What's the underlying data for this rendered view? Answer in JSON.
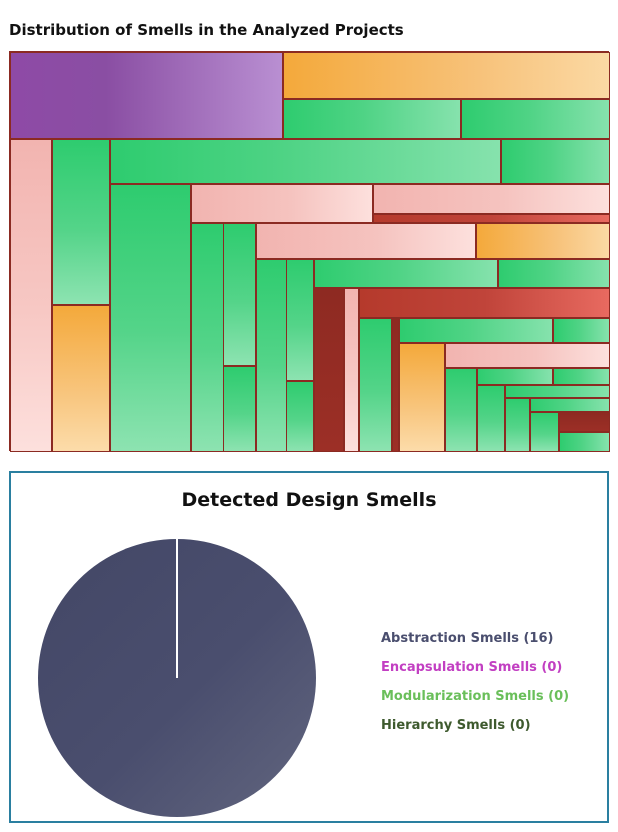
{
  "treemap": {
    "title": "Distribution of Smells in the Analyzed Projects"
  },
  "pie": {
    "title": "Detected Design Smells"
  },
  "chart_data": [
    {
      "type": "treemap",
      "title": "Distribution of Smells in the Analyzed Projects",
      "legend": "none",
      "cells": [
        {
          "color": "purple",
          "value": 0.136
        },
        {
          "color": "orange",
          "value": 0.066
        },
        {
          "color": "green",
          "value": 0.038
        },
        {
          "color": "green",
          "value": 0.031
        },
        {
          "color": "pink",
          "value": 0.054
        },
        {
          "color": "green",
          "value": 0.045
        },
        {
          "color": "orange",
          "value": 0.04
        },
        {
          "color": "green",
          "value": 0.065
        },
        {
          "color": "green",
          "value": 0.018
        },
        {
          "color": "green",
          "value": 0.044
        },
        {
          "color": "pink",
          "value": 0.031
        },
        {
          "color": "pink",
          "value": 0.029
        },
        {
          "color": "red",
          "value": 0.006
        },
        {
          "color": "green",
          "value": 0.018
        },
        {
          "color": "green",
          "value": 0.012
        },
        {
          "color": "green",
          "value": 0.007
        },
        {
          "color": "pink",
          "value": 0.024
        },
        {
          "color": "orange",
          "value": 0.011
        },
        {
          "color": "green",
          "value": 0.016
        },
        {
          "color": "green",
          "value": 0.009
        },
        {
          "color": "green",
          "value": 0.016
        },
        {
          "color": "green",
          "value": 0.01
        },
        {
          "color": "green",
          "value": 0.012
        },
        {
          "color": "darkred",
          "value": 0.011
        },
        {
          "color": "pink",
          "value": 0.005
        },
        {
          "color": "red",
          "value": 0.018
        },
        {
          "color": "green",
          "value": 0.012
        },
        {
          "color": "darkred",
          "value": 0.002
        },
        {
          "color": "green",
          "value": 0.007
        },
        {
          "color": "green",
          "value": 0.004
        },
        {
          "color": "orange",
          "value": 0.008
        },
        {
          "color": "pink",
          "value": 0.012
        },
        {
          "color": "green",
          "value": 0.006
        },
        {
          "color": "green",
          "value": 0.005
        },
        {
          "color": "green",
          "value": 0.002
        },
        {
          "color": "green",
          "value": 0.005
        },
        {
          "color": "green",
          "value": 0.003
        },
        {
          "color": "green",
          "value": 0.004
        },
        {
          "color": "green",
          "value": 0.003
        },
        {
          "color": "green",
          "value": 0.002
        },
        {
          "color": "darkred",
          "value": 0.002
        },
        {
          "color": "green",
          "value": 0.002
        }
      ]
    },
    {
      "type": "pie",
      "title": "Detected Design Smells",
      "legend": "right",
      "slices": [
        {
          "label": "Abstraction Smells (16)",
          "value": 16,
          "color": "#4a4e6e"
        },
        {
          "label": "Encapsulation Smells (0)",
          "value": 0,
          "color": "#c23fc2"
        },
        {
          "label": "Modularization Smells (0)",
          "value": 0,
          "color": "#6abf5a"
        },
        {
          "label": "Hierarchy Smells (0)",
          "value": 0,
          "color": "#3e5a2e"
        }
      ]
    }
  ]
}
